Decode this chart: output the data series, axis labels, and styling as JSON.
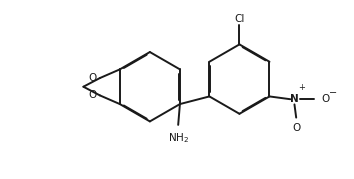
{
  "bg_color": "#ffffff",
  "line_color": "#1a1a1a",
  "line_width": 1.4,
  "dbo": 0.022,
  "figsize": [
    3.54,
    1.79
  ],
  "dpi": 100,
  "xlim": [
    0.0,
    10.0
  ],
  "ylim": [
    0.0,
    5.0
  ]
}
